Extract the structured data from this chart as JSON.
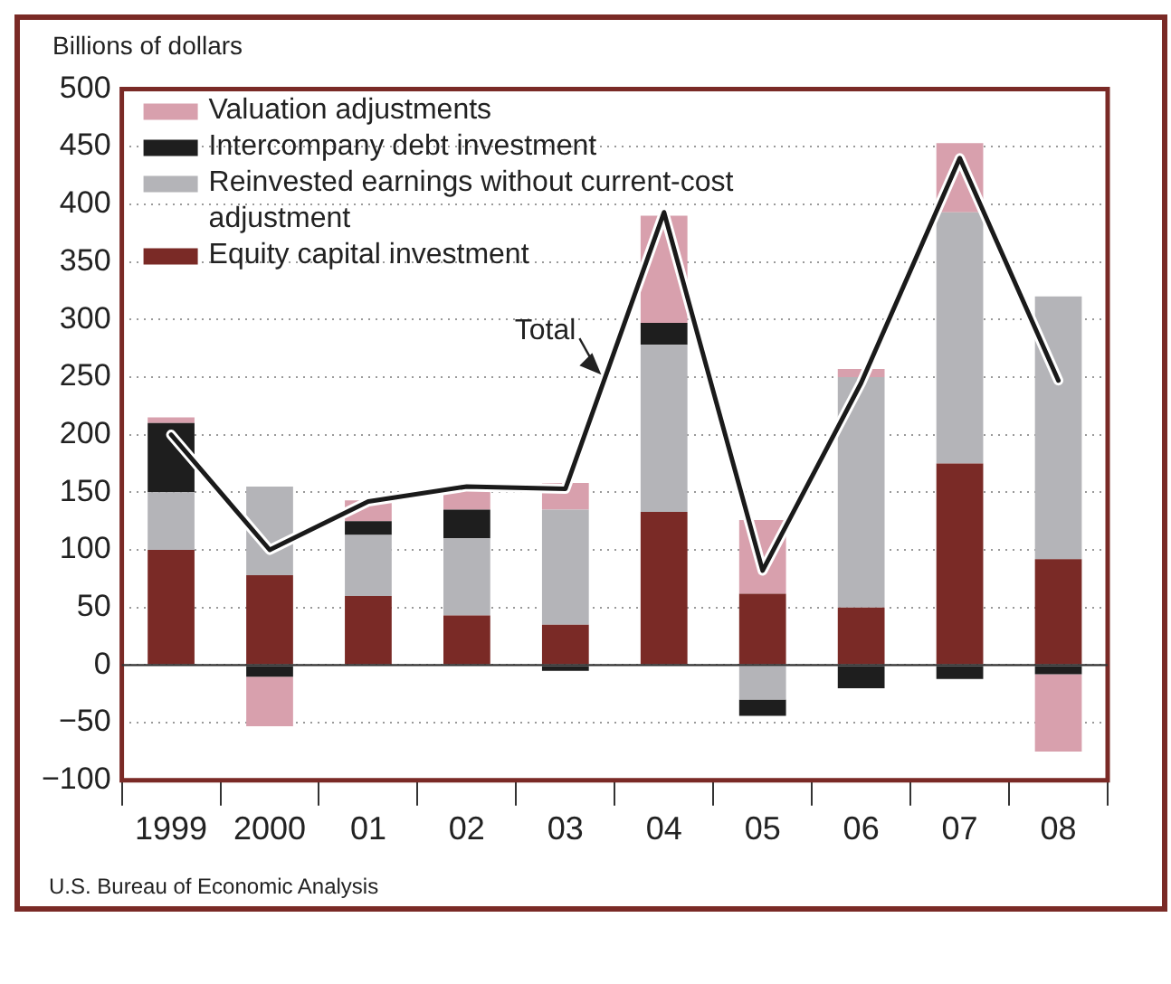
{
  "chart_data": {
    "type": "bar",
    "stacked": true,
    "ylabel": "Billions of dollars",
    "categories": [
      "1999",
      "2000",
      "01",
      "02",
      "03",
      "04",
      "05",
      "06",
      "07",
      "08"
    ],
    "series": [
      {
        "name": "Equity capital investment",
        "color": "#7a2a26",
        "values": [
          100,
          78,
          60,
          43,
          35,
          133,
          62,
          50,
          175,
          92
        ]
      },
      {
        "name": "Reinvested earnings without current-cost adjustment",
        "color": "#b4b4b8",
        "values": [
          50,
          77,
          53,
          67,
          100,
          145,
          -30,
          200,
          218,
          228
        ]
      },
      {
        "name": "Intercompany debt investment",
        "color": "#1e1e1e",
        "values": [
          60,
          -10,
          12,
          25,
          -5,
          19,
          -14,
          -20,
          -12,
          -8
        ]
      },
      {
        "name": "Valuation adjustments",
        "color": "#d8a0ad",
        "values": [
          5,
          -43,
          18,
          20,
          23,
          93,
          64,
          7,
          60,
          -67
        ]
      },
      {
        "name": "Total",
        "type": "line",
        "color": "#1a1a1a",
        "values": [
          200,
          100,
          142,
          155,
          153,
          393,
          82,
          245,
          440,
          247
        ]
      }
    ],
    "ylim": [
      -100,
      500
    ],
    "yticks": [
      -100,
      -50,
      0,
      50,
      100,
      150,
      200,
      250,
      300,
      350,
      400,
      450,
      500
    ],
    "grid": "y",
    "legend": "top left",
    "marker": "none",
    "line_style": "solid",
    "annotations": [
      "U.S. Bureau of Economic Analysis"
    ]
  }
}
